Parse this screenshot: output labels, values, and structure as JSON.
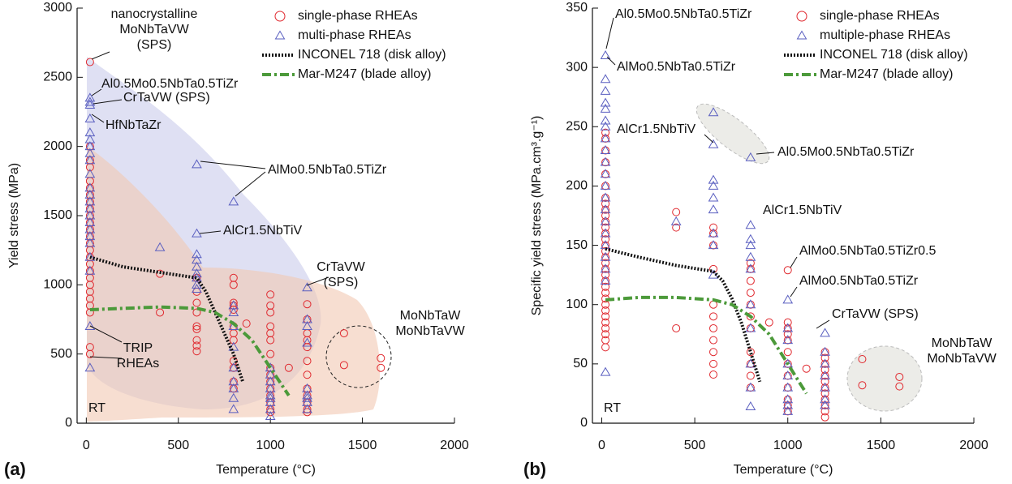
{
  "chart_data": [
    {
      "type": "scatter",
      "panel": "(a)",
      "xlabel": "Temperature (°C)",
      "ylabel": "Yield stress (MPa)",
      "note": "RT",
      "xlim": [
        -50,
        2000
      ],
      "xticks": [
        0,
        500,
        1000,
        1500,
        2000
      ],
      "ylim": [
        0,
        3000
      ],
      "yticks": [
        0,
        500,
        1000,
        1500,
        2000,
        2500,
        3000
      ],
      "series": [
        {
          "name": "single-phase RHEAs",
          "color": "#e0282e",
          "marker": "circle",
          "x": [
            20,
            20,
            20,
            20,
            20,
            20,
            20,
            20,
            20,
            20,
            20,
            20,
            20,
            20,
            20,
            20,
            20,
            20,
            20,
            20,
            20,
            20,
            20,
            20,
            20,
            20,
            400,
            400,
            600,
            600,
            600,
            600,
            600,
            600,
            600,
            600,
            600,
            800,
            800,
            800,
            800,
            800,
            800,
            800,
            800,
            800,
            800,
            800,
            800,
            870,
            1000,
            1000,
            1000,
            1000,
            1000,
            1000,
            1000,
            1000,
            1000,
            1000,
            1000,
            1000,
            1000,
            1000,
            1000,
            1100,
            1200,
            1200,
            1200,
            1200,
            1200,
            1200,
            1200,
            1200,
            1200,
            1200,
            1200,
            1200,
            1400,
            1400,
            1600,
            1600
          ],
          "values": [
            2610,
            2000,
            1900,
            1850,
            1750,
            1700,
            1650,
            1600,
            1550,
            1500,
            1450,
            1400,
            1350,
            1300,
            1250,
            1200,
            1150,
            1100,
            1050,
            1000,
            950,
            900,
            850,
            800,
            550,
            500,
            1080,
            800,
            1050,
            950,
            870,
            800,
            700,
            680,
            600,
            560,
            520,
            1050,
            1000,
            870,
            850,
            820,
            700,
            650,
            600,
            450,
            400,
            300,
            250,
            720,
            930,
            850,
            800,
            700,
            650,
            600,
            500,
            400,
            350,
            300,
            250,
            200,
            150,
            100,
            80,
            400,
            860,
            750,
            650,
            600,
            550,
            450,
            350,
            250,
            200,
            150,
            100,
            80,
            650,
            420,
            470,
            400
          ]
        },
        {
          "name": "multi-phase RHEAs",
          "color": "#5a5fc0",
          "marker": "triangle",
          "x": [
            20,
            20,
            20,
            20,
            20,
            20,
            20,
            20,
            20,
            20,
            20,
            20,
            20,
            20,
            20,
            20,
            20,
            20,
            20,
            20,
            20,
            20,
            20,
            400,
            600,
            600,
            600,
            600,
            600,
            600,
            600,
            600,
            600,
            800,
            800,
            800,
            800,
            800,
            800,
            800,
            800,
            800,
            800,
            1000,
            1000,
            1000,
            1000,
            1000,
            1000,
            1000,
            1000,
            1000,
            1200,
            1200,
            1200,
            1200,
            1200,
            1200,
            1200,
            1200,
            1200
          ],
          "values": [
            2350,
            2320,
            2300,
            2200,
            2100,
            2050,
            2000,
            1950,
            1900,
            1800,
            1700,
            1650,
            1600,
            1550,
            1500,
            1450,
            1400,
            1350,
            1300,
            1200,
            1100,
            700,
            400,
            1270,
            1870,
            1370,
            1220,
            1180,
            1130,
            1080,
            1050,
            1000,
            970,
            1600,
            850,
            800,
            700,
            550,
            400,
            300,
            250,
            180,
            100,
            400,
            350,
            300,
            250,
            200,
            180,
            150,
            100,
            50,
            980,
            750,
            700,
            580,
            250,
            200,
            180,
            150,
            100
          ]
        },
        {
          "name": "INCONEL 718 (disk alloy)",
          "color": "#111111",
          "marker": "line",
          "line_style": "dotted",
          "x": [
            20,
            200,
            400,
            600,
            650,
            700,
            750,
            800,
            850
          ],
          "values": [
            1200,
            1130,
            1090,
            1050,
            950,
            800,
            650,
            500,
            300
          ]
        },
        {
          "name": "Mar-M247 (blade alloy)",
          "color": "#4c9a3a",
          "marker": "line",
          "line_style": "dashdot",
          "x": [
            20,
            200,
            400,
            600,
            700,
            800,
            900,
            1000,
            1100
          ],
          "values": [
            820,
            830,
            840,
            830,
            800,
            720,
            600,
            400,
            200
          ]
        }
      ],
      "annotations": [
        {
          "lines": [
            "nanocrystalline",
            "MoNbTaVW",
            "(SPS)"
          ]
        },
        {
          "lines": [
            "Al0.5Mo0.5NbTa0.5TiZr"
          ]
        },
        {
          "lines": [
            "CrTaVW (SPS)"
          ]
        },
        {
          "lines": [
            "HfNbTaZr"
          ]
        },
        {
          "lines": [
            "AlMo0.5NbTa0.5TiZr"
          ]
        },
        {
          "lines": [
            "AlCr1.5NbTiV"
          ]
        },
        {
          "lines": [
            "CrTaVW",
            "(SPS)"
          ]
        },
        {
          "lines": [
            "MoNbTaW",
            "MoNbTaVW"
          ]
        },
        {
          "lines": [
            "TRIP",
            "RHEAs"
          ]
        }
      ]
    },
    {
      "type": "scatter",
      "panel": "(b)",
      "xlabel": "Temperature (°C)",
      "ylabel": "Specific yield stress (MPa.cm³.g⁻¹)",
      "note": "RT",
      "xlim": [
        -50,
        2000
      ],
      "xticks": [
        0,
        500,
        1000,
        1500,
        2000
      ],
      "ylim": [
        0,
        350
      ],
      "yticks": [
        0,
        50,
        100,
        150,
        200,
        250,
        300,
        350
      ],
      "series": [
        {
          "name": "single-phase RHEAs",
          "color": "#e0282e",
          "marker": "circle",
          "x": [
            20,
            20,
            20,
            20,
            20,
            20,
            20,
            20,
            20,
            20,
            20,
            20,
            20,
            20,
            20,
            20,
            20,
            20,
            20,
            20,
            20,
            20,
            20,
            20,
            20,
            20,
            20,
            20,
            20,
            20,
            20,
            20,
            400,
            400,
            400,
            600,
            600,
            600,
            600,
            600,
            600,
            600,
            600,
            600,
            600,
            600,
            800,
            800,
            800,
            800,
            800,
            800,
            800,
            800,
            800,
            800,
            800,
            900,
            1000,
            1000,
            1000,
            1000,
            1000,
            1000,
            1000,
            1000,
            1000,
            1000,
            1000,
            1000,
            1100,
            1200,
            1200,
            1200,
            1200,
            1200,
            1200,
            1200,
            1200,
            1200,
            1200,
            1200,
            1200,
            1400,
            1400,
            1600,
            1600
          ],
          "values": [
            245,
            240,
            230,
            220,
            210,
            200,
            190,
            185,
            180,
            175,
            170,
            165,
            160,
            155,
            150,
            145,
            140,
            135,
            130,
            125,
            120,
            115,
            110,
            105,
            100,
            95,
            90,
            85,
            80,
            75,
            70,
            64,
            178,
            165,
            80,
            165,
            160,
            150,
            130,
            100,
            90,
            80,
            70,
            60,
            50,
            41,
            135,
            130,
            120,
            110,
            100,
            90,
            80,
            60,
            50,
            40,
            30,
            85,
            129,
            85,
            80,
            75,
            70,
            60,
            50,
            40,
            30,
            20,
            15,
            10,
            46,
            60,
            55,
            50,
            45,
            40,
            35,
            30,
            25,
            20,
            15,
            10,
            5,
            54,
            32,
            39,
            31
          ]
        },
        {
          "name": "multiple-phase RHEAs",
          "color": "#5a5fc0",
          "marker": "triangle",
          "x": [
            20,
            20,
            20,
            20,
            20,
            20,
            20,
            20,
            20,
            20,
            20,
            20,
            20,
            20,
            20,
            20,
            20,
            20,
            20,
            20,
            20,
            400,
            600,
            600,
            600,
            600,
            600,
            600,
            600,
            600,
            600,
            800,
            800,
            800,
            800,
            800,
            800,
            800,
            800,
            800,
            800,
            800,
            1000,
            1000,
            1000,
            1000,
            1000,
            1000,
            1000,
            1000,
            1000,
            1200,
            1200,
            1200,
            1200,
            1200,
            1200,
            1200
          ],
          "values": [
            310,
            290,
            280,
            270,
            265,
            255,
            250,
            240,
            230,
            220,
            210,
            200,
            190,
            180,
            170,
            160,
            150,
            140,
            130,
            120,
            43,
            170,
            262,
            235,
            205,
            200,
            190,
            180,
            160,
            150,
            125,
            224,
            167,
            155,
            150,
            140,
            130,
            100,
            80,
            50,
            30,
            14,
            104,
            80,
            70,
            50,
            40,
            30,
            20,
            15,
            10,
            76,
            60,
            50,
            40,
            30,
            20,
            15
          ]
        },
        {
          "name": "INCONEL 718 (disk alloy)",
          "color": "#111111",
          "marker": "line",
          "line_style": "dotted",
          "x": [
            20,
            200,
            400,
            600,
            650,
            700,
            750,
            800,
            850
          ],
          "values": [
            147,
            140,
            133,
            128,
            120,
            105,
            85,
            60,
            35
          ]
        },
        {
          "name": "Mar-M247 (blade alloy)",
          "color": "#4c9a3a",
          "marker": "line",
          "line_style": "dashdot",
          "x": [
            20,
            200,
            400,
            600,
            700,
            800,
            900,
            1000,
            1100
          ],
          "values": [
            104,
            106,
            106,
            104,
            100,
            90,
            75,
            50,
            25
          ]
        }
      ],
      "annotations": [
        {
          "lines": [
            "Al0.5Mo0.5NbTa0.5TiZr"
          ]
        },
        {
          "lines": [
            "AlMo0.5NbTa0.5TiZr"
          ]
        },
        {
          "lines": [
            "AlCr1.5NbTiV"
          ]
        },
        {
          "lines": [
            "Al0.5Mo0.5NbTa0.5TiZr"
          ]
        },
        {
          "lines": [
            "AlCr1.5NbTiV"
          ]
        },
        {
          "lines": [
            "AlMo0.5NbTa0.5TiZr0.5"
          ]
        },
        {
          "lines": [
            "AlMo0.5NbTa0.5TiZr"
          ]
        },
        {
          "lines": [
            "CrTaVW (SPS)"
          ]
        },
        {
          "lines": [
            "MoNbTaW",
            "MoNbTaVW"
          ]
        }
      ]
    }
  ]
}
